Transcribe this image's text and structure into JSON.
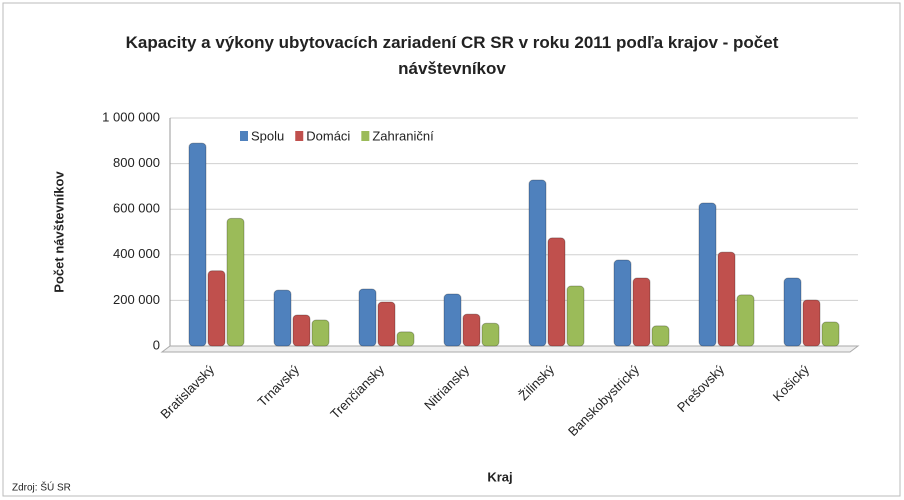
{
  "chart_data": {
    "type": "bar",
    "title": "Kapacity a výkony ubytovacích zariadení CR SR v roku 2011 podľa krajov - počet návštevníkov",
    "x_label": "Kraj",
    "y_label": "Počet návštevníkov",
    "source": "Zdroj: ŠÚ SR",
    "categories": [
      "Bratislavský",
      "Trnavský",
      "Trenčiansky",
      "Nitriansky",
      "Žilinský",
      "Banskobystrický",
      "Prešovský",
      "Košický"
    ],
    "series": [
      {
        "name": "Spolu",
        "color": "#4f81bd",
        "values": [
          890000,
          245000,
          250000,
          228000,
          728000,
          377000,
          627000,
          298000
        ]
      },
      {
        "name": "Domáci",
        "color": "#c0504d",
        "values": [
          330000,
          136000,
          193000,
          140000,
          474000,
          298000,
          412000,
          202000
        ]
      },
      {
        "name": "Zahraniční",
        "color": "#9bbb59",
        "values": [
          560000,
          114000,
          62000,
          100000,
          263000,
          88000,
          224000,
          105000
        ]
      }
    ],
    "ylim": [
      0,
      1000000
    ],
    "yticks": [
      0,
      {
        "value": 200000,
        "label": "200 000"
      },
      {
        "value": 400000,
        "label": "400 000"
      },
      {
        "value": 600000,
        "label": "600 000"
      },
      {
        "value": 800000,
        "label": "800 000"
      },
      {
        "value": 1000000,
        "label": "1 000 000"
      }
    ],
    "grid": true,
    "legend": "top-left"
  }
}
